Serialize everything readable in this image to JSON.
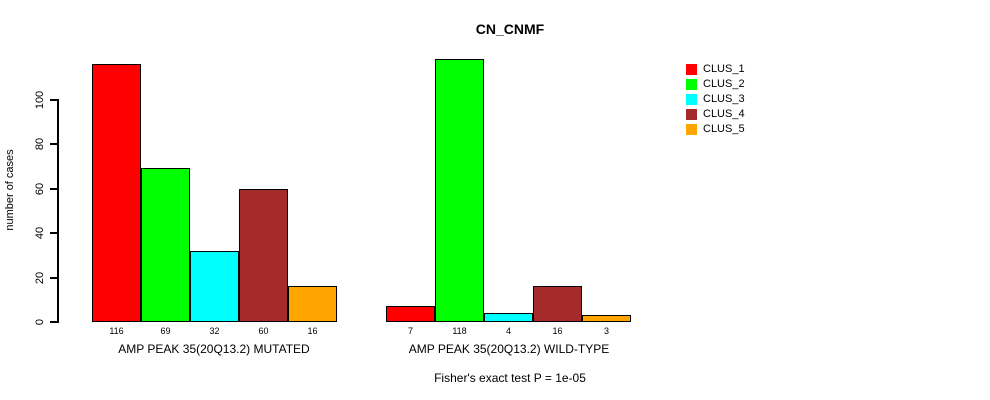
{
  "chart_data": {
    "type": "bar",
    "title": "CN_CNMF",
    "ylabel": "number of cases",
    "xlabel": "",
    "categories": [
      "AMP PEAK 35(20Q13.2) MUTATED",
      "AMP PEAK 35(20Q13.2) WILD-TYPE"
    ],
    "series": [
      {
        "name": "CLUS_1",
        "color": "#FF0000",
        "values": [
          116,
          7
        ]
      },
      {
        "name": "CLUS_2",
        "color": "#00FF00",
        "values": [
          69,
          118
        ]
      },
      {
        "name": "CLUS_3",
        "color": "#00FFFF",
        "values": [
          32,
          4
        ]
      },
      {
        "name": "CLUS_4",
        "color": "#A52A2A",
        "values": [
          60,
          16
        ]
      },
      {
        "name": "CLUS_5",
        "color": "#FFA500",
        "values": [
          16,
          3
        ]
      }
    ],
    "bar_value_labels_shown": true,
    "ylim": [
      0,
      118
    ],
    "yticks": [
      0,
      20,
      40,
      60,
      80,
      100
    ],
    "grid": false,
    "legend_position": "right",
    "annotation": "Fisher's exact test P = 1e-05"
  }
}
